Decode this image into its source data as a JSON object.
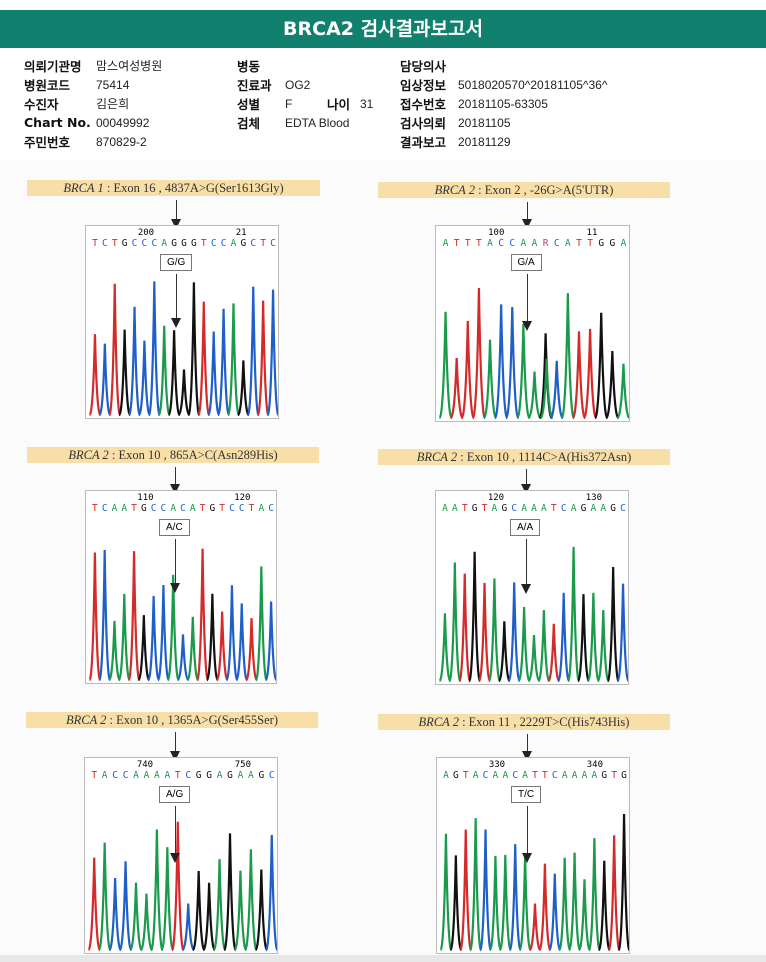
{
  "title": "BRCA2 검사결과보고서",
  "info": {
    "col1": [
      {
        "k": "의뢰기관명",
        "v": "맘스여성병원"
      },
      {
        "k": "병원코드",
        "v": "75414"
      },
      {
        "k": "수진자",
        "v": "김은희"
      },
      {
        "k": "Chart No.",
        "v": "00049992"
      },
      {
        "k": "주민번호",
        "v": "870829-2"
      }
    ],
    "col2": [
      {
        "k": "병동",
        "v": ""
      },
      {
        "k": "진료과",
        "v": "OG2"
      },
      {
        "k": "성별",
        "v": "F"
      },
      {
        "k": "검체",
        "v": "EDTA Blood"
      }
    ],
    "age_label": "나이",
    "age": "31",
    "col3": [
      {
        "k": "담당의사",
        "v": ""
      },
      {
        "k": "임상정보",
        "v": "5018020570^20181105^36^"
      },
      {
        "k": "접수번호",
        "v": "20181105-63305"
      },
      {
        "k": "검사의뢰",
        "v": "20181105"
      },
      {
        "k": "결과보고",
        "v": "20181129"
      }
    ]
  },
  "panels": [
    {
      "gene": "BRCA 1",
      "desc": " : Exon 16 , 4837A>G(Ser1613Gly)",
      "seq": "TCTGCCCAGGGTCCAGCTC",
      "ticks": [
        "200",
        "21"
      ],
      "genotype": "G/G"
    },
    {
      "gene": "BRCA 2",
      "desc": " : Exon 2 , -26G>A(5'UTR)",
      "seq": "ATTTACCAARCATTGGA",
      "ticks": [
        "100",
        "11"
      ],
      "genotype": "G/A"
    },
    {
      "gene": "BRCA 2",
      "desc": " : Exon 10 , 865A>C(Asn289His)",
      "seq": "TCAATGCCACATGTCCTAC",
      "ticks": [
        "110",
        "120"
      ],
      "genotype": "A/C"
    },
    {
      "gene": "BRCA 2",
      "desc": " : Exon 10 , 1114C>A(His372Asn)",
      "seq": "AATGTAGCAAATCAGAAGC",
      "ticks": [
        "120",
        "130"
      ],
      "genotype": "A/A"
    },
    {
      "gene": "BRCA 2",
      "desc": " : Exon 10 , 1365A>G(Ser455Ser)",
      "seq": "TACCAAAATCGGAGAAGC",
      "ticks": [
        "740",
        "750"
      ],
      "genotype": "A/G"
    },
    {
      "gene": "BRCA 2",
      "desc": " : Exon 11 , 2229T>C(His743His)",
      "seq": "AGTACAACATTCAAAAGTG",
      "ticks": [
        "330",
        "340"
      ],
      "genotype": "T/C"
    }
  ],
  "colors": {
    "A": "#1a9a4a",
    "C": "#1f5fc8",
    "G": "#111111",
    "T": "#d42a2a",
    "header": "#12806f"
  }
}
